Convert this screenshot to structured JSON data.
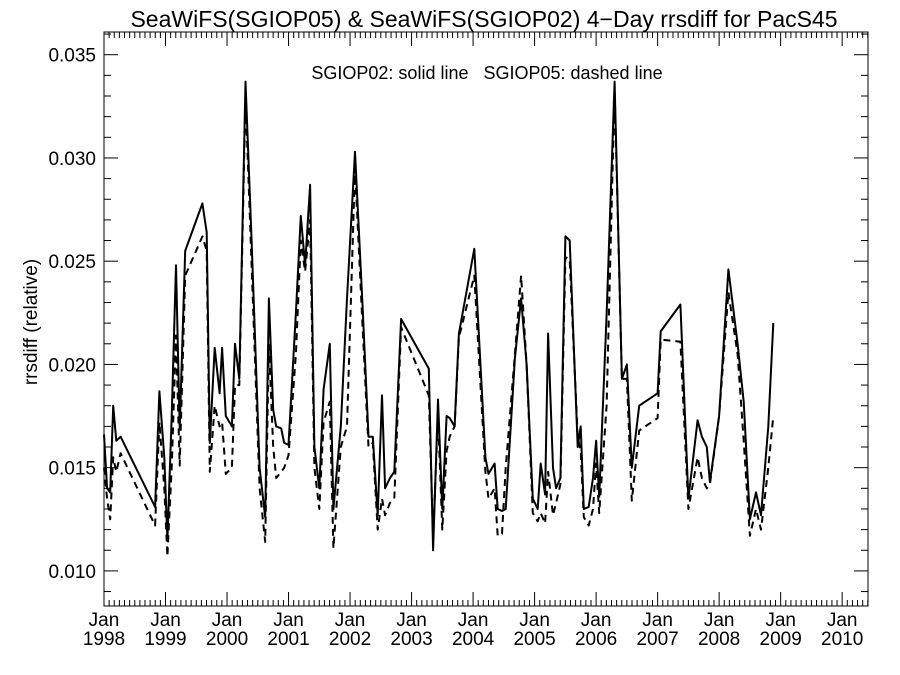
{
  "chart_data": {
    "type": "line",
    "title": "SeaWiFS(SGIOP05) & SeaWiFS(SGIOP02) 4−Day rrsdiff for PacS45",
    "ylabel": "rrsdiff (relative)",
    "annotation": "SGIOP02: solid line   SGIOP05: dashed line",
    "xlim": [
      1998.0,
      2010.42
    ],
    "ylim": [
      0.0083,
      0.0361
    ],
    "yticks": [
      0.01,
      0.015,
      0.02,
      0.025,
      0.03,
      0.035
    ],
    "ytick_labels": [
      "0.010",
      "0.015",
      "0.020",
      "0.025",
      "0.030",
      "0.035"
    ],
    "xticks": [
      {
        "x": 1998,
        "month": "Jan",
        "year": "1998"
      },
      {
        "x": 1999,
        "month": "Jan",
        "year": "1999"
      },
      {
        "x": 2000,
        "month": "Jan",
        "year": "2000"
      },
      {
        "x": 2001,
        "month": "Jan",
        "year": "2001"
      },
      {
        "x": 2002,
        "month": "Jan",
        "year": "2002"
      },
      {
        "x": 2003,
        "month": "Jan",
        "year": "2003"
      },
      {
        "x": 2004,
        "month": "Jan",
        "year": "2004"
      },
      {
        "x": 2005,
        "month": "Jan",
        "year": "2005"
      },
      {
        "x": 2006,
        "month": "Jan",
        "year": "2006"
      },
      {
        "x": 2007,
        "month": "Jan",
        "year": "2007"
      },
      {
        "x": 2008,
        "month": "Jan",
        "year": "2008"
      },
      {
        "x": 2009,
        "month": "Jan",
        "year": "2009"
      },
      {
        "x": 2010,
        "month": "Jan",
        "year": "2010"
      }
    ],
    "grid": false,
    "series": [
      {
        "name": "SGIOP02",
        "style": "solid",
        "color": "#000000",
        "points": [
          [
            1998.0,
            0.0166
          ],
          [
            1998.05,
            0.014
          ],
          [
            1998.1,
            0.0138
          ],
          [
            1998.15,
            0.018
          ],
          [
            1998.2,
            0.0163
          ],
          [
            1998.27,
            0.0165
          ],
          [
            1998.83,
            0.0131
          ],
          [
            1998.9,
            0.0187
          ],
          [
            1998.98,
            0.0155
          ],
          [
            1999.03,
            0.0115
          ],
          [
            1999.1,
            0.0175
          ],
          [
            1999.17,
            0.0248
          ],
          [
            1999.23,
            0.0169
          ],
          [
            1999.32,
            0.0255
          ],
          [
            1999.6,
            0.0278
          ],
          [
            1999.67,
            0.0264
          ],
          [
            1999.72,
            0.0162
          ],
          [
            1999.8,
            0.0208
          ],
          [
            1999.88,
            0.0186
          ],
          [
            1999.92,
            0.0208
          ],
          [
            1999.98,
            0.0175
          ],
          [
            2000.08,
            0.017
          ],
          [
            2000.13,
            0.021
          ],
          [
            2000.2,
            0.0193
          ],
          [
            2000.3,
            0.0337
          ],
          [
            2000.4,
            0.026
          ],
          [
            2000.53,
            0.015
          ],
          [
            2000.62,
            0.0126
          ],
          [
            2000.68,
            0.0232
          ],
          [
            2000.75,
            0.0178
          ],
          [
            2000.8,
            0.017
          ],
          [
            2000.88,
            0.0169
          ],
          [
            2000.93,
            0.0162
          ],
          [
            2001.0,
            0.0161
          ],
          [
            2001.12,
            0.0225
          ],
          [
            2001.2,
            0.0272
          ],
          [
            2001.27,
            0.0248
          ],
          [
            2001.35,
            0.0287
          ],
          [
            2001.42,
            0.016
          ],
          [
            2001.5,
            0.014
          ],
          [
            2001.57,
            0.0188
          ],
          [
            2001.67,
            0.021
          ],
          [
            2001.73,
            0.013
          ],
          [
            2001.85,
            0.017
          ],
          [
            2001.95,
            0.0232
          ],
          [
            2002.08,
            0.0303
          ],
          [
            2002.2,
            0.023
          ],
          [
            2002.3,
            0.0165
          ],
          [
            2002.37,
            0.0165
          ],
          [
            2002.45,
            0.0127
          ],
          [
            2002.52,
            0.0185
          ],
          [
            2002.57,
            0.014
          ],
          [
            2002.65,
            0.0145
          ],
          [
            2002.72,
            0.0148
          ],
          [
            2002.83,
            0.0222
          ],
          [
            2003.28,
            0.0198
          ],
          [
            2003.35,
            0.011
          ],
          [
            2003.43,
            0.0183
          ],
          [
            2003.5,
            0.013
          ],
          [
            2003.57,
            0.0175
          ],
          [
            2003.62,
            0.0174
          ],
          [
            2003.7,
            0.017
          ],
          [
            2003.77,
            0.0215
          ],
          [
            2004.02,
            0.0256
          ],
          [
            2004.2,
            0.0155
          ],
          [
            2004.25,
            0.0147
          ],
          [
            2004.35,
            0.0152
          ],
          [
            2004.4,
            0.013
          ],
          [
            2004.47,
            0.0129
          ],
          [
            2004.53,
            0.013
          ],
          [
            2004.68,
            0.0203
          ],
          [
            2004.78,
            0.0232
          ],
          [
            2004.87,
            0.02
          ],
          [
            2004.97,
            0.0135
          ],
          [
            2005.05,
            0.013
          ],
          [
            2005.1,
            0.0152
          ],
          [
            2005.17,
            0.0137
          ],
          [
            2005.22,
            0.0215
          ],
          [
            2005.3,
            0.015
          ],
          [
            2005.35,
            0.014
          ],
          [
            2005.42,
            0.0145
          ],
          [
            2005.5,
            0.0262
          ],
          [
            2005.57,
            0.026
          ],
          [
            2005.7,
            0.016
          ],
          [
            2005.75,
            0.017
          ],
          [
            2005.8,
            0.013
          ],
          [
            2005.88,
            0.0131
          ],
          [
            2005.95,
            0.0145
          ],
          [
            2006.0,
            0.0163
          ],
          [
            2006.05,
            0.0136
          ],
          [
            2006.17,
            0.0224
          ],
          [
            2006.3,
            0.0337
          ],
          [
            2006.42,
            0.0193
          ],
          [
            2006.5,
            0.02
          ],
          [
            2006.58,
            0.015
          ],
          [
            2006.7,
            0.018
          ],
          [
            2007.0,
            0.0186
          ],
          [
            2007.05,
            0.0216
          ],
          [
            2007.37,
            0.0229
          ],
          [
            2007.5,
            0.0135
          ],
          [
            2007.65,
            0.0173
          ],
          [
            2007.72,
            0.0165
          ],
          [
            2007.8,
            0.016
          ],
          [
            2007.85,
            0.0143
          ],
          [
            2008.0,
            0.0175
          ],
          [
            2008.15,
            0.0246
          ],
          [
            2008.3,
            0.021
          ],
          [
            2008.4,
            0.0182
          ],
          [
            2008.5,
            0.0125
          ],
          [
            2008.6,
            0.0138
          ],
          [
            2008.68,
            0.0127
          ],
          [
            2008.8,
            0.017
          ],
          [
            2008.88,
            0.022
          ]
        ]
      },
      {
        "name": "SGIOP05",
        "style": "dashed",
        "color": "#000000",
        "points": [
          [
            1998.0,
            0.015
          ],
          [
            1998.05,
            0.0135
          ],
          [
            1998.1,
            0.0125
          ],
          [
            1998.15,
            0.0155
          ],
          [
            1998.2,
            0.0148
          ],
          [
            1998.27,
            0.0157
          ],
          [
            1998.83,
            0.0122
          ],
          [
            1998.9,
            0.0172
          ],
          [
            1998.98,
            0.014
          ],
          [
            1999.03,
            0.0107
          ],
          [
            1999.1,
            0.015
          ],
          [
            1999.17,
            0.0214
          ],
          [
            1999.23,
            0.0151
          ],
          [
            1999.32,
            0.0243
          ],
          [
            1999.6,
            0.0262
          ],
          [
            1999.67,
            0.0255
          ],
          [
            1999.72,
            0.0148
          ],
          [
            1999.8,
            0.018
          ],
          [
            1999.88,
            0.017
          ],
          [
            1999.92,
            0.0172
          ],
          [
            1999.98,
            0.0147
          ],
          [
            2000.08,
            0.015
          ],
          [
            2000.13,
            0.019
          ],
          [
            2000.2,
            0.019
          ],
          [
            2000.3,
            0.033
          ],
          [
            2000.4,
            0.0248
          ],
          [
            2000.53,
            0.014
          ],
          [
            2000.62,
            0.0114
          ],
          [
            2000.68,
            0.021
          ],
          [
            2000.75,
            0.016
          ],
          [
            2000.8,
            0.0145
          ],
          [
            2000.88,
            0.0148
          ],
          [
            2000.93,
            0.015
          ],
          [
            2001.0,
            0.0156
          ],
          [
            2001.12,
            0.0205
          ],
          [
            2001.2,
            0.026
          ],
          [
            2001.27,
            0.0245
          ],
          [
            2001.35,
            0.027
          ],
          [
            2001.42,
            0.015
          ],
          [
            2001.5,
            0.013
          ],
          [
            2001.57,
            0.0172
          ],
          [
            2001.67,
            0.0182
          ],
          [
            2001.73,
            0.0111
          ],
          [
            2001.85,
            0.016
          ],
          [
            2001.95,
            0.017
          ],
          [
            2002.08,
            0.0295
          ],
          [
            2002.2,
            0.022
          ],
          [
            2002.3,
            0.016
          ],
          [
            2002.37,
            0.0162
          ],
          [
            2002.45,
            0.012
          ],
          [
            2002.52,
            0.0135
          ],
          [
            2002.57,
            0.0127
          ],
          [
            2002.65,
            0.0133
          ],
          [
            2002.72,
            0.0135
          ],
          [
            2002.83,
            0.0218
          ],
          [
            2003.28,
            0.0185
          ],
          [
            2003.35,
            0.0117
          ],
          [
            2003.43,
            0.0175
          ],
          [
            2003.5,
            0.012
          ],
          [
            2003.57,
            0.0158
          ],
          [
            2003.62,
            0.0165
          ],
          [
            2003.7,
            0.017
          ],
          [
            2003.77,
            0.0213
          ],
          [
            2004.02,
            0.0243
          ],
          [
            2004.2,
            0.0148
          ],
          [
            2004.25,
            0.0135
          ],
          [
            2004.35,
            0.014
          ],
          [
            2004.4,
            0.0117
          ],
          [
            2004.47,
            0.0118
          ],
          [
            2004.53,
            0.015
          ],
          [
            2004.68,
            0.0205
          ],
          [
            2004.78,
            0.0243
          ],
          [
            2004.87,
            0.02
          ],
          [
            2004.97,
            0.0128
          ],
          [
            2005.05,
            0.0124
          ],
          [
            2005.1,
            0.0128
          ],
          [
            2005.17,
            0.0123
          ],
          [
            2005.22,
            0.0148
          ],
          [
            2005.3,
            0.0127
          ],
          [
            2005.35,
            0.0133
          ],
          [
            2005.42,
            0.0142
          ],
          [
            2005.5,
            0.0252
          ],
          [
            2005.57,
            0.0251
          ],
          [
            2005.7,
            0.0165
          ],
          [
            2005.75,
            0.0158
          ],
          [
            2005.8,
            0.0126
          ],
          [
            2005.88,
            0.0122
          ],
          [
            2005.95,
            0.013
          ],
          [
            2006.0,
            0.0152
          ],
          [
            2006.05,
            0.0128
          ],
          [
            2006.17,
            0.018
          ],
          [
            2006.3,
            0.0333
          ],
          [
            2006.42,
            0.0193
          ],
          [
            2006.5,
            0.0193
          ],
          [
            2006.58,
            0.0134
          ],
          [
            2006.7,
            0.0168
          ],
          [
            2007.0,
            0.0174
          ],
          [
            2007.05,
            0.0212
          ],
          [
            2007.37,
            0.0211
          ],
          [
            2007.5,
            0.013
          ],
          [
            2007.65,
            0.0155
          ],
          [
            2007.72,
            0.0145
          ],
          [
            2007.8,
            0.014
          ],
          [
            2007.85,
            0.0142
          ],
          [
            2008.0,
            0.0175
          ],
          [
            2008.15,
            0.0235
          ],
          [
            2008.3,
            0.0205
          ],
          [
            2008.4,
            0.0163
          ],
          [
            2008.5,
            0.0117
          ],
          [
            2008.6,
            0.013
          ],
          [
            2008.68,
            0.012
          ],
          [
            2008.8,
            0.015
          ],
          [
            2008.88,
            0.0175
          ]
        ]
      }
    ]
  }
}
